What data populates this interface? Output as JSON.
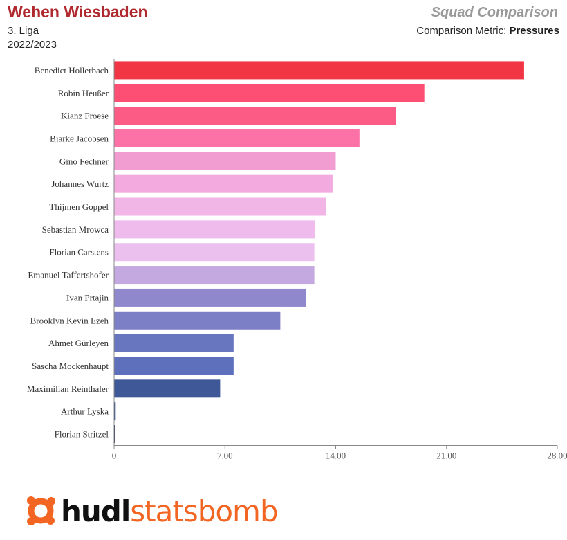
{
  "header": {
    "team": "Wehen Wiesbaden",
    "league": "3. Liga",
    "season": "2022/2023",
    "chart_title": "Squad Comparison",
    "metric_prefix": "Comparison Metric: ",
    "metric_name": "Pressures"
  },
  "logo": {
    "part1": "hudl",
    "part2": "statsbomb",
    "icon": "statsbomb-logo-icon"
  },
  "chart_data": {
    "type": "bar",
    "orientation": "horizontal",
    "categories": [
      "Benedict Hollerbach",
      "Robin Heußer",
      "Kianz Froese",
      "Bjarke Jacobsen",
      "Gino Fechner",
      "Johannes Wurtz",
      "Thijmen Goppel",
      "Sebastian Mrowca",
      "Florian Carstens",
      "Emanuel Taffertshofer",
      "Ivan Prtajin",
      "Brooklyn Kevin Ezeh",
      "Ahmet Gürleyen",
      "Sascha Mockenhaupt",
      "Maximilian Reinthaler",
      "Arthur Lyska",
      "Florian Stritzel"
    ],
    "values": [
      25.9,
      19.6,
      17.8,
      15.5,
      14.0,
      13.8,
      13.4,
      12.7,
      12.65,
      12.65,
      12.1,
      10.5,
      7.55,
      7.55,
      6.7,
      0.1,
      0.05
    ],
    "colors": [
      "#f23545",
      "#fc4f73",
      "#fc5b86",
      "#fc72a7",
      "#f29dd2",
      "#f3aadf",
      "#f2b6e6",
      "#efbbec",
      "#ecc0ee",
      "#c4a8e0",
      "#8f88cd",
      "#7d7fc6",
      "#6876c0",
      "#5e6fbb",
      "#3f5898",
      "#2e4a8a",
      "#1c2b55"
    ],
    "xlim": [
      0,
      28
    ],
    "xticks": [
      "0",
      "7.00",
      "14.00",
      "21.00",
      "28.00"
    ],
    "xtick_values": [
      0,
      7,
      14,
      21,
      28
    ],
    "grid": false
  }
}
